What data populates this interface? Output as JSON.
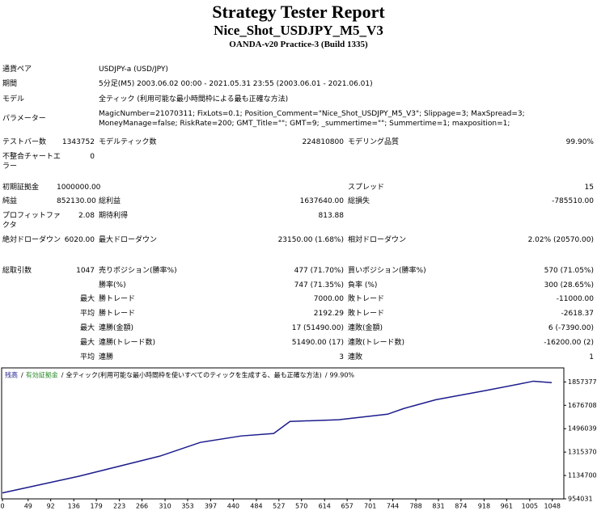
{
  "header": {
    "title": "Strategy Tester Report",
    "subtitle": "Nice_Shot_USDJPY_M5_V3",
    "server": "OANDA-v20 Practice-3 (Build 1335)"
  },
  "info": [
    {
      "label": "通貨ペア",
      "value": "USDJPY-a (USD/JPY)"
    },
    {
      "label": "期間",
      "value": "5分足(M5) 2003.06.02 00:00 - 2021.05.31 23:55 (2003.06.01 - 2021.06.01)"
    },
    {
      "label": "モデル",
      "value": "全ティック (利用可能な最小時間枠による最も正確な方法)"
    },
    {
      "label": "パラメーター",
      "value": "MagicNumber=21070311; FixLots=0.1; Position_Comment=\"Nice_Shot_USDJPY_M5_V3\"; Slippage=3; MaxSpread=3; MoneyManage=false; RiskRate=200; GMT_Title=\"\"; GMT=9; _summertime=\"\"; Summertime=1; maxposition=1;"
    }
  ],
  "stats": {
    "rows": [
      [
        "テストバー数",
        "1343752",
        "モデルティック数",
        "224810800",
        "モデリング品質",
        "99.90%"
      ],
      [
        "不整合チャートエラー",
        "0",
        null,
        null,
        null,
        null
      ],
      [
        "初期証拠金",
        "1000000.00",
        null,
        null,
        "スプレッド",
        "15"
      ],
      [
        "純益",
        "852130.00",
        "総利益",
        "1637640.00",
        "総損失",
        "-785510.00"
      ],
      [
        "プロフィットファクタ",
        "2.08",
        "期待利得",
        "813.88",
        null,
        null
      ],
      [
        "絶対ドローダウン",
        "6020.00",
        "最大ドローダウン",
        "23150.00 (1.68%)",
        "相対ドローダウン",
        "2.02% (20570.00)"
      ],
      [
        "総取引数",
        "1047",
        "売りポジション(勝率%)",
        "477 (71.70%)",
        "買いポジション(勝率%)",
        "570 (71.05%)"
      ],
      [
        null,
        null,
        "勝率(%)",
        "747 (71.35%)",
        "負率 (%)",
        "300 (28.65%)"
      ],
      [
        null,
        "最大",
        "勝トレード",
        "7000.00",
        "敗トレード",
        "-11000.00"
      ],
      [
        null,
        "平均",
        "勝トレード",
        "2192.29",
        "敗トレード",
        "-2618.37"
      ],
      [
        null,
        "最大",
        "連勝(金額)",
        "17 (51490.00)",
        "連敗(金額)",
        "6 (-7390.00)"
      ],
      [
        null,
        "最大",
        "連勝(トレード数)",
        "51490.00 (17)",
        "連敗(トレード数)",
        "-16200.00 (2)"
      ],
      [
        null,
        "平均",
        "連勝",
        "3",
        "連敗",
        "1"
      ]
    ]
  },
  "chart_data": {
    "type": "line",
    "legend_items": [
      "有効証拠金",
      "全ティック(利用可能な最小時間枠を使いすべてのティックを生成する、最も正確な方法)",
      "99.90%"
    ],
    "x": [
      0,
      145,
      300,
      377,
      455,
      517,
      548,
      641,
      734,
      765,
      826,
      919,
      981,
      1012,
      1047
    ],
    "series": [
      {
        "name": "残高",
        "color": "#1c1c8c",
        "values": [
          1000000,
          1128000,
          1284000,
          1390000,
          1440000,
          1459000,
          1552000,
          1565000,
          1608000,
          1652000,
          1720000,
          1789000,
          1838000,
          1863000,
          1852130
        ]
      }
    ],
    "xlim": [
      0,
      1070
    ],
    "xticks": [
      0,
      49,
      92,
      136,
      179,
      223,
      266,
      310,
      353,
      397,
      440,
      484,
      527,
      570,
      614,
      657,
      701,
      744,
      788,
      831,
      874,
      918,
      961,
      1005,
      1048
    ],
    "ylim": [
      954031,
      1947000
    ],
    "yticks": [
      954031,
      1134700,
      1315370,
      1496039,
      1676708,
      1857377
    ]
  }
}
